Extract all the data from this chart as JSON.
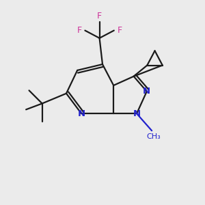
{
  "background_color": "#ebebeb",
  "bond_color": "#1a1a1a",
  "nitrogen_color": "#2222cc",
  "fluorine_color": "#cc3399",
  "line_width": 1.6,
  "figsize": [
    3.0,
    3.0
  ],
  "dpi": 100,
  "xlim": [
    0,
    10
  ],
  "ylim": [
    0,
    10
  ]
}
